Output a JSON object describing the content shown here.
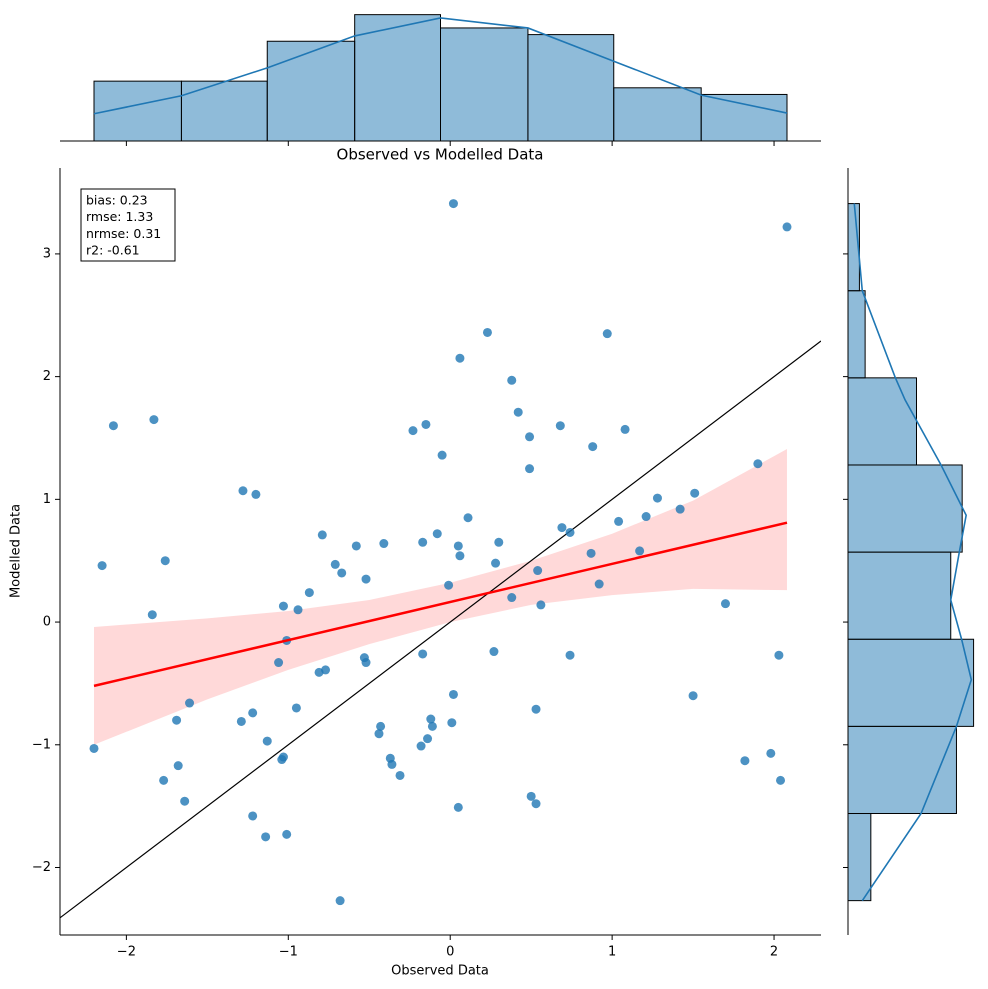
{
  "chart_data": [
    {
      "type": "scatter",
      "title": "Observed vs Modelled Data",
      "xlabel": "Observed Data",
      "ylabel": "Modelled Data",
      "color": "#1f77b4",
      "x": [
        0.02,
        2.08,
        0.23,
        0.97,
        0.06,
        0.38,
        0.42,
        -2.08,
        -1.83,
        -0.15,
        -0.23,
        0.68,
        1.08,
        0.49,
        0.88,
        -0.05,
        0.49,
        1.9,
        -1.28,
        -1.2,
        1.28,
        1.51,
        1.42,
        0.11,
        1.21,
        1.04,
        0.69,
        0.74,
        -0.08,
        -0.79,
        -0.17,
        0.3,
        -0.41,
        -0.58,
        0.05,
        0.06,
        0.87,
        1.17,
        -1.76,
        -2.15,
        -0.71,
        0.28,
        -0.67,
        0.54,
        -0.52,
        0.92,
        -0.01,
        -0.87,
        0.38,
        0.56,
        1.7,
        -1.84,
        -1.03,
        -0.94,
        -1.01,
        -0.17,
        0.27,
        0.74,
        2.03,
        -1.06,
        -0.53,
        -0.52,
        -0.77,
        -0.81,
        -1.61,
        0.02,
        1.5,
        0.53,
        -0.95,
        -1.22,
        -1.69,
        -1.29,
        -0.12,
        0.01,
        -0.43,
        -0.11,
        -0.44,
        -0.14,
        -1.13,
        -2.2,
        -0.18,
        1.98,
        -1.03,
        -1.04,
        -0.37,
        -0.36,
        1.82,
        -1.68,
        -0.31,
        -1.77,
        2.04,
        -1.64,
        0.5,
        0.53,
        0.05,
        -1.22,
        -1.14,
        -1.01,
        -0.68
      ],
      "y": [
        3.41,
        3.22,
        2.36,
        2.35,
        2.15,
        1.97,
        1.71,
        1.6,
        1.65,
        1.61,
        1.56,
        1.6,
        1.57,
        1.51,
        1.43,
        1.36,
        1.25,
        1.29,
        1.07,
        1.04,
        1.01,
        1.05,
        0.92,
        0.85,
        0.86,
        0.82,
        0.77,
        0.73,
        0.72,
        0.71,
        0.65,
        0.65,
        0.64,
        0.62,
        0.62,
        0.54,
        0.56,
        0.58,
        0.5,
        0.46,
        0.47,
        0.48,
        0.4,
        0.42,
        0.35,
        0.31,
        0.3,
        0.24,
        0.2,
        0.14,
        0.15,
        0.06,
        0.13,
        0.1,
        -0.15,
        -0.26,
        -0.24,
        -0.27,
        -0.27,
        -0.33,
        -0.29,
        -0.33,
        -0.39,
        -0.41,
        -0.66,
        -0.59,
        -0.6,
        -0.71,
        -0.7,
        -0.74,
        -0.8,
        -0.81,
        -0.79,
        -0.82,
        -0.85,
        -0.85,
        -0.91,
        -0.95,
        -0.97,
        -1.03,
        -1.01,
        -1.07,
        -1.1,
        -1.12,
        -1.11,
        -1.16,
        -1.13,
        -1.17,
        -1.25,
        -1.29,
        -1.29,
        -1.46,
        -1.42,
        -1.48,
        -1.51,
        -1.58,
        -1.75,
        -1.73,
        -2.27
      ],
      "xlim": [
        -2.41,
        2.29
      ],
      "ylim": [
        -2.55,
        3.7
      ],
      "xticks": [
        {
          "value": -2,
          "label": "−2"
        },
        {
          "value": -1,
          "label": "−1"
        },
        0,
        1,
        2
      ],
      "yticks": [
        {
          "value": -2,
          "label": "−2"
        },
        {
          "value": -1,
          "label": "−1"
        },
        0,
        1,
        2,
        3
      ],
      "fit": {
        "color": "#ff0000",
        "x": [
          -2.2,
          2.08
        ],
        "y": [
          -0.52,
          0.81
        ]
      },
      "ci": {
        "x": [
          -2.2,
          -1.5,
          -1,
          -0.5,
          0,
          0.5,
          1,
          1.5,
          2.08
        ],
        "upper": [
          -0.04,
          0.03,
          0.09,
          0.18,
          0.32,
          0.5,
          0.72,
          0.99,
          1.41
        ],
        "lower": [
          -1.0,
          -0.63,
          -0.39,
          -0.18,
          0.0,
          0.14,
          0.22,
          0.27,
          0.26
        ]
      },
      "annotations": [
        "bias: 0.23",
        "rmse: 1.33",
        "nrmse: 0.31",
        "r2: -0.61"
      ]
    },
    {
      "type": "histogram",
      "orientation": "vertical",
      "color": "#1f77b4",
      "bins": [
        -2.2,
        -1.66,
        -1.13,
        -0.59,
        -0.06,
        0.48,
        1.01,
        1.55,
        2.08
      ],
      "counts": [
        9,
        9,
        15,
        19,
        17,
        16,
        8,
        7
      ],
      "ylim": [
        0,
        20
      ],
      "kde": {
        "at": [
          -2.2,
          -1.66,
          -1.13,
          -0.59,
          -0.06,
          0.48,
          1.01,
          1.55,
          2.08
        ],
        "values": [
          4.1,
          6.8,
          11.0,
          15.8,
          18.5,
          17.0,
          12.0,
          6.9,
          4.2
        ]
      }
    },
    {
      "type": "histogram",
      "orientation": "horizontal",
      "color": "#1f77b4",
      "bins": [
        -2.27,
        -1.56,
        -0.85,
        -0.14,
        0.57,
        1.28,
        1.99,
        2.7,
        3.41
      ],
      "counts": [
        4,
        19,
        22,
        18,
        20,
        12,
        3,
        2
      ],
      "xlim": [
        0,
        24
      ],
      "kde": {
        "at": [
          -2.27,
          -1.56,
          -0.85,
          -0.47,
          -0.14,
          0.18,
          0.57,
          0.87,
          1.28,
          1.81,
          1.99,
          2.7,
          3.41
        ],
        "values": [
          2.5,
          12.8,
          19.0,
          21.6,
          19.9,
          18.0,
          19.5,
          20.7,
          16.3,
          10.0,
          8.3,
          2.5,
          1.1
        ]
      }
    }
  ]
}
